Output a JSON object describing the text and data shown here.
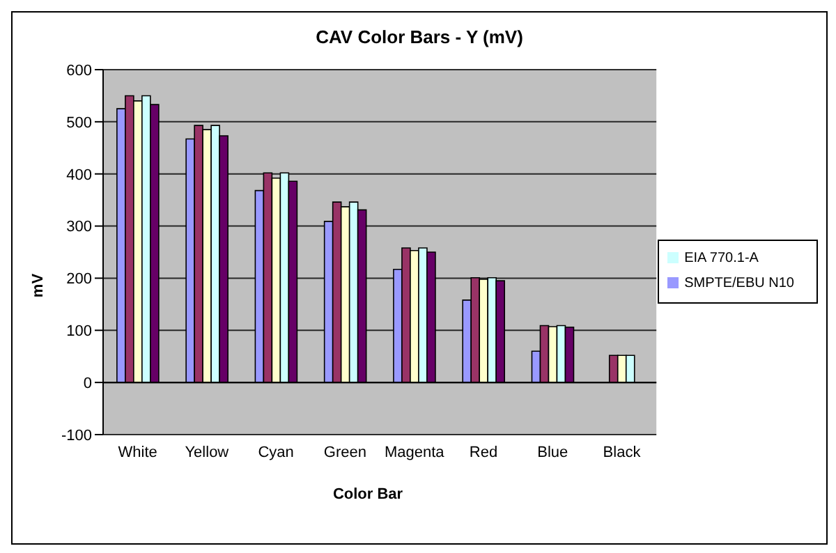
{
  "chart_data": {
    "type": "bar",
    "title": "CAV Color Bars - Y (mV)",
    "xlabel": "Color Bar",
    "ylabel": "mV",
    "categories": [
      "White",
      "Yellow",
      "Cyan",
      "Green",
      "Magenta",
      "Red",
      "Blue",
      "Black"
    ],
    "series": [
      {
        "name": "SMPTE/EBU N10",
        "color": "#9999ff",
        "values": [
          525,
          467,
          368,
          309,
          217,
          158,
          60,
          0
        ]
      },
      {
        "color": "#993366",
        "values": [
          550,
          493,
          402,
          346,
          258,
          201,
          109,
          52
        ]
      },
      {
        "color": "#ffffcc",
        "values": [
          540,
          485,
          392,
          337,
          253,
          198,
          107,
          52
        ]
      },
      {
        "name": "EIA 770.1-A",
        "color": "#ccffff",
        "values": [
          550,
          493,
          402,
          346,
          258,
          201,
          109,
          52
        ]
      },
      {
        "color": "#660066",
        "values": [
          533,
          473,
          386,
          331,
          250,
          195,
          106,
          null
        ]
      }
    ],
    "ylim": [
      -100,
      600
    ],
    "yticks": [
      -100,
      0,
      100,
      200,
      300,
      400,
      500,
      600
    ],
    "grid": "y",
    "legend": "right"
  }
}
